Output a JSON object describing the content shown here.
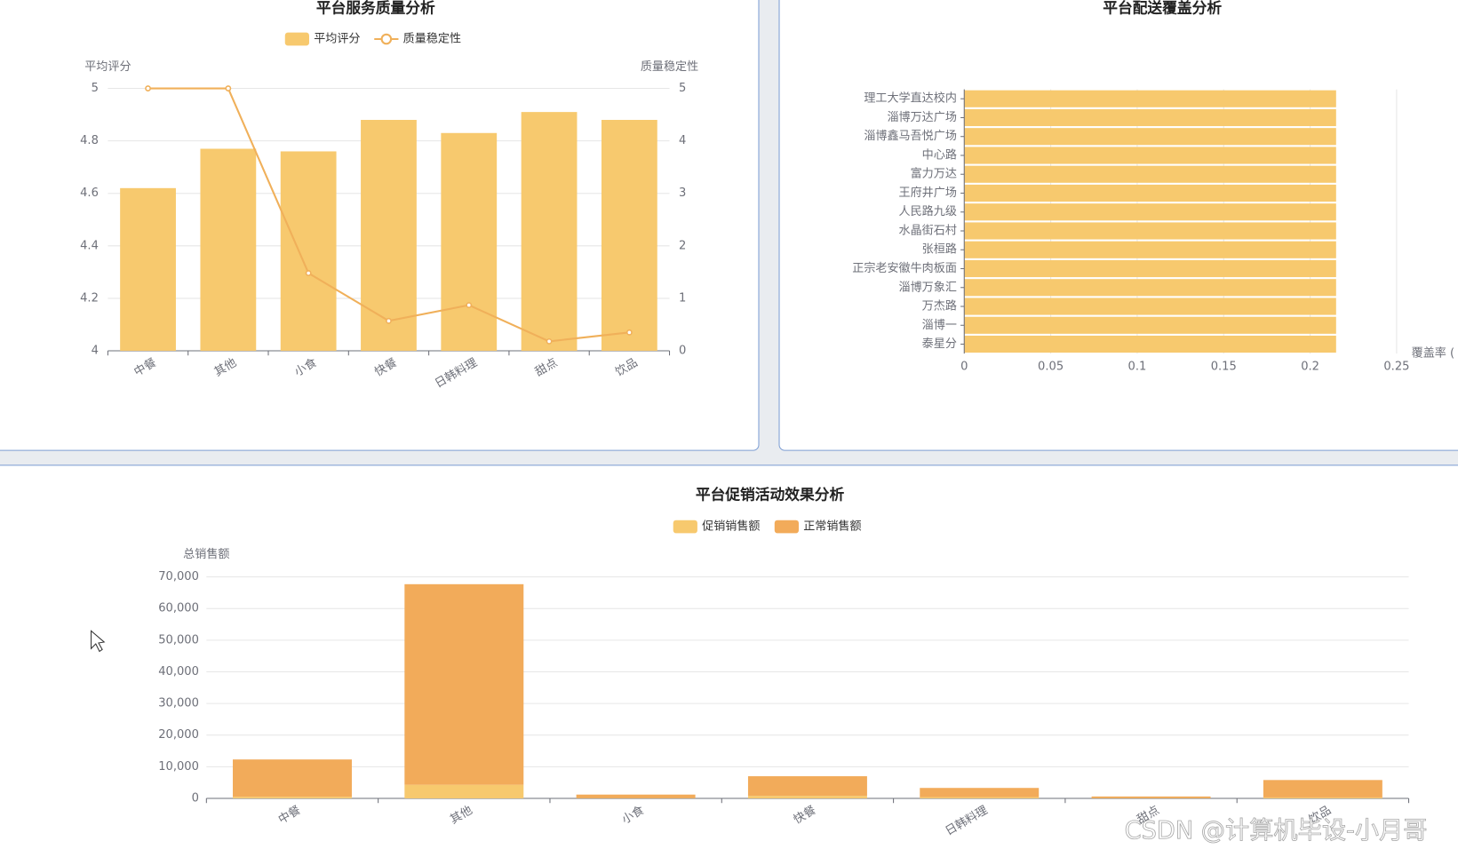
{
  "chart_data": [
    {
      "type": "combo",
      "title": "平台服务质量分析",
      "categories": [
        "中餐",
        "其他",
        "小食",
        "快餐",
        "日韩料理",
        "甜点",
        "饮品"
      ],
      "ylabel": "平均评分",
      "y2label": "质量稳定性",
      "series": [
        {
          "name": "平均评分",
          "type": "bar",
          "color": "#f7c96e",
          "values": [
            4.62,
            4.77,
            4.76,
            4.88,
            4.83,
            4.91,
            4.88
          ]
        },
        {
          "name": "质量稳定性",
          "type": "line",
          "axis": "y2",
          "color": "#f0b05a",
          "values": [
            5,
            5,
            1.48,
            0.57,
            0.87,
            0.18,
            0.35
          ]
        }
      ],
      "ylim": [
        4,
        5
      ],
      "yticks": [
        4,
        4.2,
        4.4,
        4.6,
        4.8,
        5
      ],
      "y2lim": [
        0,
        5
      ],
      "y2ticks": [
        0,
        1,
        2,
        3,
        4,
        5
      ],
      "grid": true
    },
    {
      "type": "barh",
      "title": "平台配送覆盖分析",
      "categories": [
        "理工大学直达校内",
        "淄博万达广场",
        "淄博鑫马吾悦广场",
        "中心路",
        "富力万达",
        "王府井广场",
        "人民路九级",
        "水晶街石村",
        "张桓路",
        "正宗老安徽牛肉板面",
        "淄博万象汇",
        "万杰路",
        "淄博一",
        "泰星分"
      ],
      "xlabel": "覆盖率 (",
      "color": "#f7c96e",
      "values": [
        0.215,
        0.215,
        0.215,
        0.215,
        0.215,
        0.215,
        0.215,
        0.215,
        0.215,
        0.215,
        0.215,
        0.215,
        0.215,
        0.215
      ],
      "xlim": [
        0,
        0.25
      ],
      "xticks": [
        0,
        0.05,
        0.1,
        0.15,
        0.2,
        0.25
      ],
      "grid": true
    },
    {
      "type": "stacked",
      "title": "平台促销活动效果分析",
      "categories": [
        "中餐",
        "其他",
        "小食",
        "快餐",
        "日韩料理",
        "甜点",
        "饮品"
      ],
      "ylabel": "总销售额",
      "series": [
        {
          "name": "促销销售额",
          "color": "#f7c96e",
          "values": [
            500,
            4300,
            100,
            800,
            400,
            100,
            300
          ]
        },
        {
          "name": "正常销售额",
          "color": "#f2ab5a",
          "values": [
            11800,
            63400,
            1100,
            6200,
            2900,
            500,
            5500
          ]
        }
      ],
      "ylim": [
        0,
        70000
      ],
      "yticks": [
        0,
        {
          "value": 10000,
          "label": "10,000"
        },
        {
          "value": 20000,
          "label": "20,000"
        },
        {
          "value": 30000,
          "label": "30,000"
        },
        {
          "value": 40000,
          "label": "40,000"
        },
        {
          "value": 50000,
          "label": "50,000"
        },
        {
          "value": 60000,
          "label": "60,000"
        },
        {
          "value": 70000,
          "label": "70,000"
        }
      ],
      "grid": true
    }
  ],
  "watermark": "CSDN @计算机毕设-小月哥"
}
